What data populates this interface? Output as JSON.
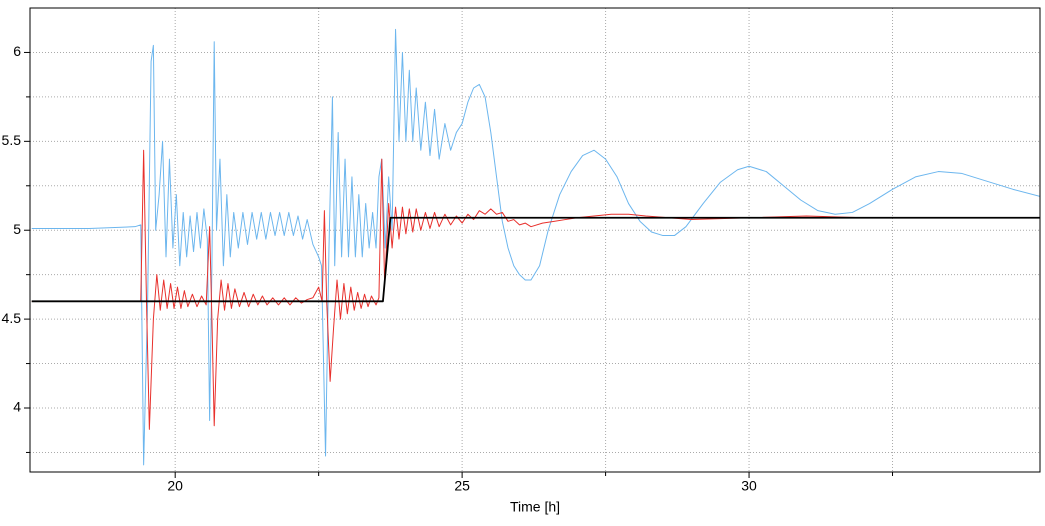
{
  "chart_data": {
    "type": "line",
    "xlabel": "Time [h]",
    "xlim": [
      17.47,
      35.07
    ],
    "ylim": [
      3.64,
      6.25
    ],
    "xticks": [
      20,
      25,
      30
    ],
    "yticks": [
      4,
      4.5,
      5,
      5.5,
      6
    ],
    "x_minor_ticks": [
      22.5,
      27.5,
      32.5
    ],
    "y_minor_ticks": [
      3.75,
      4.25,
      4.75,
      5.25,
      5.75
    ],
    "grid": true,
    "series": [
      {
        "color": "#6cb6ee",
        "width": 1,
        "x": [
          17.5,
          18.5,
          19.3,
          19.4,
          19.45,
          19.52,
          19.58,
          19.62,
          19.66,
          19.72,
          19.78,
          19.84,
          19.9,
          19.96,
          20.02,
          20.08,
          20.14,
          20.2,
          20.26,
          20.32,
          20.38,
          20.44,
          20.5,
          20.56,
          20.6,
          20.64,
          20.68,
          20.72,
          20.78,
          20.84,
          20.9,
          20.96,
          21.02,
          21.1,
          21.18,
          21.26,
          21.34,
          21.42,
          21.5,
          21.58,
          21.66,
          21.74,
          21.82,
          21.9,
          21.98,
          22.06,
          22.14,
          22.22,
          22.3,
          22.4,
          22.5,
          22.55,
          22.62,
          22.68,
          22.74,
          22.78,
          22.84,
          22.9,
          22.96,
          23.02,
          23.08,
          23.14,
          23.2,
          23.26,
          23.32,
          23.38,
          23.44,
          23.5,
          23.55,
          23.6,
          23.66,
          23.72,
          23.78,
          23.84,
          23.9,
          23.96,
          24.02,
          24.08,
          24.14,
          24.2,
          24.28,
          24.36,
          24.44,
          24.52,
          24.6,
          24.7,
          24.8,
          24.9,
          25.0,
          25.1,
          25.2,
          25.3,
          25.4,
          25.5,
          25.6,
          25.7,
          25.8,
          25.9,
          26.0,
          26.1,
          26.2,
          26.35,
          26.5,
          26.7,
          26.9,
          27.1,
          27.3,
          27.5,
          27.7,
          27.9,
          28.1,
          28.3,
          28.5,
          28.7,
          28.9,
          29.2,
          29.5,
          29.8,
          30.0,
          30.3,
          30.6,
          30.9,
          31.2,
          31.5,
          31.8,
          32.1,
          32.5,
          32.9,
          33.3,
          33.7,
          34.1,
          34.6,
          35.07
        ],
        "values": [
          5.01,
          5.01,
          5.02,
          5.03,
          3.68,
          4.6,
          5.95,
          6.04,
          5.0,
          5.2,
          5.5,
          4.85,
          5.4,
          4.9,
          5.2,
          4.8,
          5.1,
          4.85,
          5.08,
          4.88,
          5.1,
          4.9,
          5.12,
          4.95,
          3.93,
          4.8,
          6.06,
          5.0,
          5.4,
          4.8,
          5.2,
          4.85,
          5.1,
          4.9,
          5.1,
          4.92,
          5.1,
          4.95,
          5.1,
          4.95,
          5.1,
          4.97,
          5.1,
          4.97,
          5.1,
          4.97,
          5.08,
          4.95,
          5.06,
          4.92,
          4.85,
          4.8,
          3.73,
          4.9,
          5.75,
          4.8,
          5.55,
          4.85,
          5.4,
          4.85,
          5.3,
          4.85,
          5.2,
          4.85,
          5.15,
          4.9,
          5.1,
          4.9,
          5.3,
          5.4,
          4.9,
          5.3,
          5.0,
          6.13,
          5.5,
          6.0,
          5.5,
          5.9,
          5.5,
          5.8,
          5.45,
          5.72,
          5.42,
          5.68,
          5.4,
          5.6,
          5.45,
          5.55,
          5.6,
          5.72,
          5.8,
          5.82,
          5.75,
          5.55,
          5.3,
          5.05,
          4.9,
          4.8,
          4.75,
          4.72,
          4.72,
          4.8,
          5.0,
          5.2,
          5.33,
          5.42,
          5.45,
          5.4,
          5.3,
          5.15,
          5.05,
          4.99,
          4.97,
          4.97,
          5.02,
          5.15,
          5.27,
          5.34,
          5.36,
          5.33,
          5.25,
          5.17,
          5.11,
          5.09,
          5.1,
          5.15,
          5.23,
          5.3,
          5.33,
          5.32,
          5.28,
          5.23,
          5.19
        ]
      },
      {
        "color": "#e8302c",
        "width": 1,
        "x": [
          17.5,
          19.4,
          19.45,
          19.5,
          19.55,
          19.62,
          19.68,
          19.74,
          19.8,
          19.86,
          19.92,
          19.98,
          20.04,
          20.1,
          20.16,
          20.22,
          20.3,
          20.38,
          20.46,
          20.54,
          20.6,
          20.64,
          20.68,
          20.74,
          20.8,
          20.86,
          20.92,
          20.98,
          21.04,
          21.12,
          21.2,
          21.28,
          21.36,
          21.44,
          21.52,
          21.6,
          21.7,
          21.8,
          21.9,
          22.0,
          22.1,
          22.2,
          22.3,
          22.4,
          22.5,
          22.56,
          22.6,
          22.64,
          22.7,
          22.76,
          22.82,
          22.88,
          22.94,
          23.0,
          23.06,
          23.12,
          23.18,
          23.24,
          23.3,
          23.36,
          23.42,
          23.5,
          23.55,
          23.6,
          23.65,
          23.72,
          23.78,
          23.84,
          23.9,
          23.96,
          24.02,
          24.08,
          24.14,
          24.2,
          24.28,
          24.36,
          24.44,
          24.52,
          24.6,
          24.7,
          24.8,
          24.9,
          25.0,
          25.1,
          25.2,
          25.3,
          25.4,
          25.5,
          25.6,
          25.7,
          25.8,
          25.9,
          26.0,
          26.1,
          26.2,
          26.4,
          26.6,
          26.8,
          27.0,
          27.3,
          27.6,
          27.9,
          28.2,
          28.6,
          29.0,
          30.0,
          31.0,
          32.0,
          35.07
        ],
        "values": [
          4.6,
          4.6,
          5.45,
          4.6,
          3.88,
          4.5,
          4.75,
          4.55,
          4.72,
          4.56,
          4.7,
          4.56,
          4.68,
          4.56,
          4.66,
          4.57,
          4.64,
          4.57,
          4.63,
          4.58,
          5.02,
          4.5,
          3.9,
          4.5,
          4.72,
          4.55,
          4.7,
          4.56,
          4.67,
          4.57,
          4.65,
          4.57,
          4.64,
          4.58,
          4.63,
          4.58,
          4.62,
          4.58,
          4.62,
          4.58,
          4.62,
          4.59,
          4.61,
          4.62,
          4.68,
          4.6,
          5.11,
          4.6,
          4.15,
          4.45,
          4.72,
          4.5,
          4.7,
          4.53,
          4.68,
          4.55,
          4.65,
          4.56,
          4.64,
          4.57,
          4.63,
          4.58,
          4.62,
          5.4,
          4.7,
          5.15,
          4.9,
          5.13,
          4.95,
          5.13,
          4.98,
          5.12,
          4.99,
          5.12,
          5.0,
          5.1,
          5.01,
          5.1,
          5.02,
          5.09,
          5.03,
          5.08,
          5.04,
          5.09,
          5.06,
          5.11,
          5.09,
          5.12,
          5.09,
          5.1,
          5.05,
          5.06,
          5.03,
          5.04,
          5.02,
          5.04,
          5.05,
          5.06,
          5.07,
          5.08,
          5.09,
          5.09,
          5.08,
          5.07,
          5.06,
          5.07,
          5.08,
          5.07,
          5.07
        ]
      },
      {
        "color": "#000000",
        "width": 1.8,
        "x": [
          17.5,
          23.62,
          23.75,
          35.07
        ],
        "values": [
          4.6,
          4.6,
          5.07,
          5.07
        ]
      }
    ]
  }
}
